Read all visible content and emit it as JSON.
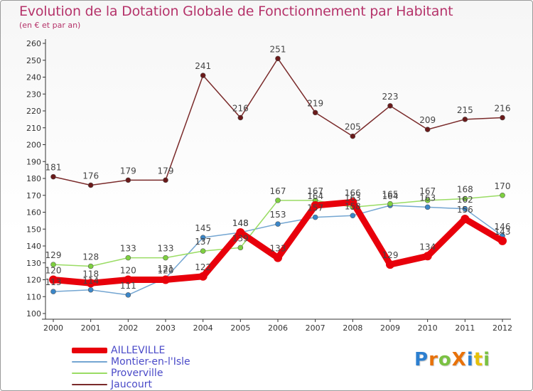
{
  "header": {
    "title": "Evolution de la Dotation Globale de Fonctionnement par Habitant",
    "subtitle": "(en € et par an)"
  },
  "brand": {
    "text": "ProXiti"
  },
  "chart_data": {
    "type": "line",
    "title": "Evolution de la Dotation Globale de Fonctionnement par Habitant",
    "subtitle": "(en € et par an)",
    "xlabel": "",
    "ylabel": "",
    "ylim": [
      100,
      260
    ],
    "ytick_step": 10,
    "grid": false,
    "legend_position": "bottom-left",
    "categories": [
      "2000",
      "2001",
      "2002",
      "2003",
      "2004",
      "2005",
      "2006",
      "2007",
      "2008",
      "2009",
      "2010",
      "2011",
      "2012"
    ],
    "series": [
      {
        "name": "AILLEVILLE",
        "color": "#e8000b",
        "point_color": "#e8000b",
        "style": "thick",
        "values": [
          120,
          118,
          120,
          120,
          122,
          148,
          133,
          164,
          166,
          129,
          134,
          156,
          143
        ],
        "labels": [
          "120",
          "118",
          "120",
          "120",
          "122",
          "148",
          "133",
          "164",
          "166",
          "129",
          "134",
          "156",
          "143"
        ]
      },
      {
        "name": "Montier-en-l'Isle",
        "color": "#74a6d2",
        "point_color": "#3a86c8",
        "style": "thin",
        "values": [
          113,
          114,
          111,
          121,
          145,
          148,
          153,
          157,
          158,
          164,
          163,
          162,
          146
        ],
        "labels": [
          "113",
          "114",
          "111",
          "121",
          "145",
          "148",
          "153",
          "157",
          "158",
          "164",
          "163",
          "162",
          "146"
        ]
      },
      {
        "name": "Proverville",
        "color": "#9adc64",
        "point_color": "#7ed040",
        "style": "thin",
        "values": [
          129,
          128,
          133,
          133,
          137,
          139,
          167,
          167,
          163,
          165,
          167,
          168,
          170
        ],
        "labels": [
          "129",
          "128",
          "133",
          "133",
          "137",
          "139",
          "167",
          "167",
          "163",
          "165",
          "167",
          "168",
          "170"
        ]
      },
      {
        "name": "Jaucourt",
        "color": "#7a2a2a",
        "point_color": "#6a1a1a",
        "style": "thin",
        "values": [
          181,
          176,
          179,
          179,
          241,
          216,
          251,
          219,
          205,
          223,
          209,
          215,
          216
        ],
        "labels": [
          "181",
          "176",
          "179",
          "179",
          "241",
          "216",
          "251",
          "219",
          "205",
          "223",
          "209",
          "215",
          "216"
        ]
      }
    ]
  }
}
